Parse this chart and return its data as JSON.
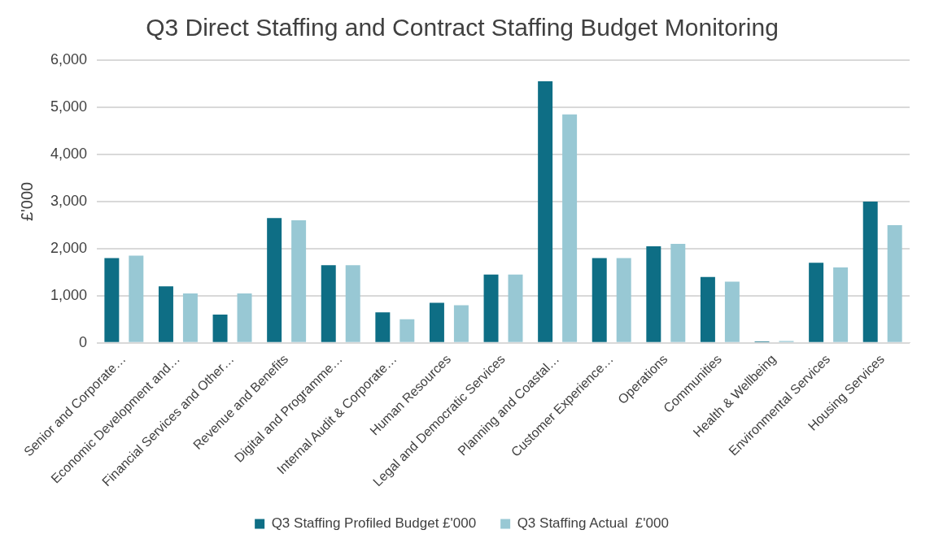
{
  "chart_data": {
    "type": "bar",
    "title": "Q3 Direct Staffing and Contract Staffing Budget Monitoring",
    "ylabel": "£'000",
    "categories": [
      "Senior and Corporate…",
      "Economic Development and…",
      "Financial Services and Other…",
      "Revenue and Benefits",
      "Digital and Programme…",
      "Internal Audit & Corporate…",
      "Human Resources",
      "Legal and Democratic Services",
      "Planning and Coastal…",
      "Customer Experience…",
      "Operations",
      "Communities",
      "Health & Wellbeing",
      "Environmental Services",
      "Housing Services"
    ],
    "series": [
      {
        "name": "Q3 Staffing Profiled Budget £'000",
        "color": "#0e6e85",
        "values": [
          1800,
          1200,
          600,
          2650,
          1650,
          650,
          850,
          1450,
          5550,
          1800,
          2050,
          1400,
          30,
          1700,
          3000
        ]
      },
      {
        "name": "Q3 Staffing Actual  £'000",
        "color": "#98c8d4",
        "values": [
          1850,
          1050,
          1050,
          2600,
          1650,
          500,
          800,
          1450,
          4850,
          1800,
          2100,
          1300,
          40,
          1600,
          2500
        ]
      }
    ],
    "ylim": [
      0,
      6000
    ],
    "yticks": [
      {
        "value": 0,
        "label": "0"
      },
      {
        "value": 1000,
        "label": "1,000"
      },
      {
        "value": 2000,
        "label": "2,000"
      },
      {
        "value": 3000,
        "label": "3,000"
      },
      {
        "value": 4000,
        "label": "4,000"
      },
      {
        "value": 5000,
        "label": "5,000"
      },
      {
        "value": 6000,
        "label": "6,000"
      }
    ],
    "grid": "y",
    "legend": "bottom"
  }
}
